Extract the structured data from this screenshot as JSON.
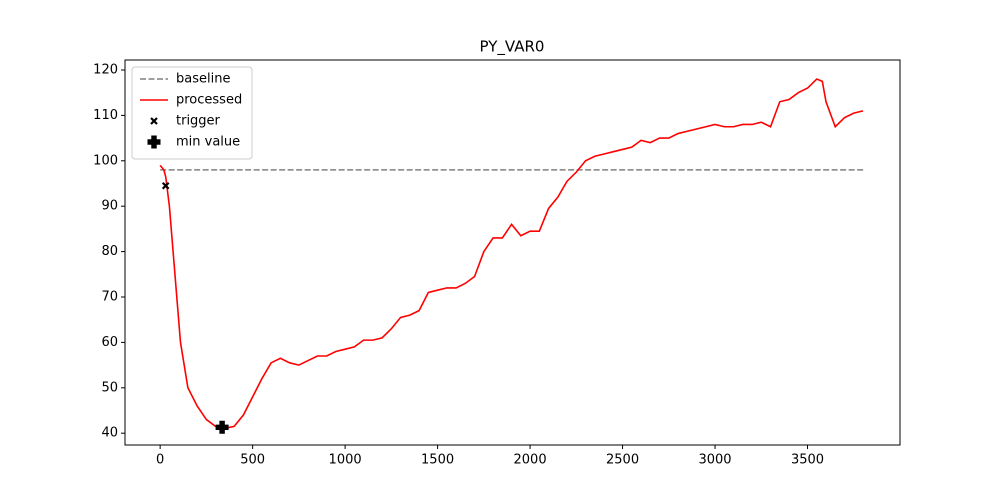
{
  "chart_data": {
    "type": "line",
    "title": "PY_VAR0",
    "xlim": [
      -190,
      4000
    ],
    "ylim": [
      37.4,
      122.2
    ],
    "xticks": [
      0,
      500,
      1000,
      1500,
      2000,
      2500,
      3000,
      3500
    ],
    "yticks": [
      40,
      50,
      60,
      70,
      80,
      90,
      100,
      110,
      120
    ],
    "grid": false,
    "legend": "upper left",
    "series": [
      {
        "name": "baseline",
        "color": "#808080",
        "kind": "line",
        "linestyle": "dashed",
        "x": [
          0,
          3810
        ],
        "values": [
          98,
          98
        ]
      },
      {
        "name": "processed",
        "color": "#ff0000",
        "kind": "line",
        "linestyle": "solid",
        "x": [
          0,
          20,
          30,
          50,
          80,
          110,
          150,
          200,
          250,
          300,
          340,
          400,
          450,
          500,
          550,
          600,
          650,
          700,
          750,
          800,
          850,
          900,
          950,
          1000,
          1050,
          1100,
          1150,
          1200,
          1250,
          1300,
          1350,
          1400,
          1450,
          1500,
          1550,
          1600,
          1650,
          1700,
          1750,
          1800,
          1850,
          1900,
          1950,
          2000,
          2050,
          2100,
          2150,
          2200,
          2250,
          2300,
          2350,
          2400,
          2450,
          2500,
          2550,
          2600,
          2650,
          2700,
          2750,
          2800,
          2850,
          2900,
          2950,
          3000,
          3050,
          3100,
          3150,
          3200,
          3250,
          3300,
          3350,
          3400,
          3450,
          3500,
          3550,
          3580,
          3600,
          3650,
          3700,
          3750,
          3800
        ],
        "values": [
          99,
          98,
          96.5,
          90,
          75,
          60,
          50,
          46,
          43,
          41.5,
          41,
          41.5,
          44,
          48,
          52,
          55.5,
          56.5,
          55.5,
          55,
          56,
          57,
          57,
          58,
          58.5,
          59,
          60.5,
          60.5,
          61,
          63,
          65.5,
          66,
          67,
          71,
          71.5,
          72,
          72,
          73,
          74.5,
          80,
          83,
          83,
          86,
          83.5,
          84.5,
          84.5,
          89.5,
          92,
          95.5,
          97.5,
          100,
          101,
          101.5,
          102,
          102.5,
          103,
          104.5,
          104,
          105,
          105,
          106,
          106.5,
          107,
          107.5,
          108,
          107.5,
          107.5,
          108,
          108,
          108.5,
          107.5,
          113,
          113.5,
          115,
          116,
          118,
          117.5,
          113,
          107.5,
          109.5,
          110.5,
          111
        ]
      },
      {
        "name": "trigger",
        "color": "#000000",
        "kind": "scatter",
        "marker": "x",
        "x": [
          30
        ],
        "values": [
          94.5
        ]
      },
      {
        "name": "min value",
        "color": "#000000",
        "kind": "scatter",
        "marker": "P",
        "x": [
          335
        ],
        "values": [
          41.3
        ]
      }
    ]
  }
}
